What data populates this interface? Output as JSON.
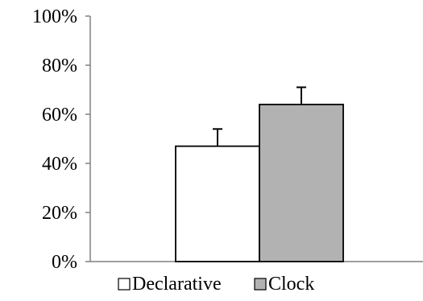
{
  "chart_data": {
    "type": "bar",
    "categories": [
      ""
    ],
    "series": [
      {
        "name": "Declarative",
        "values": [
          47
        ],
        "error": [
          7
        ],
        "color": "#ffffff"
      },
      {
        "name": "Clock",
        "values": [
          64
        ],
        "error": [
          7
        ],
        "color": "#b2b2b2"
      }
    ],
    "title": "",
    "xlabel": "",
    "ylabel": "",
    "ylim": [
      0,
      100
    ],
    "yticks": [
      "0%",
      "20%",
      "40%",
      "60%",
      "80%",
      "100%"
    ],
    "grid": false,
    "legend_position": "bottom"
  }
}
